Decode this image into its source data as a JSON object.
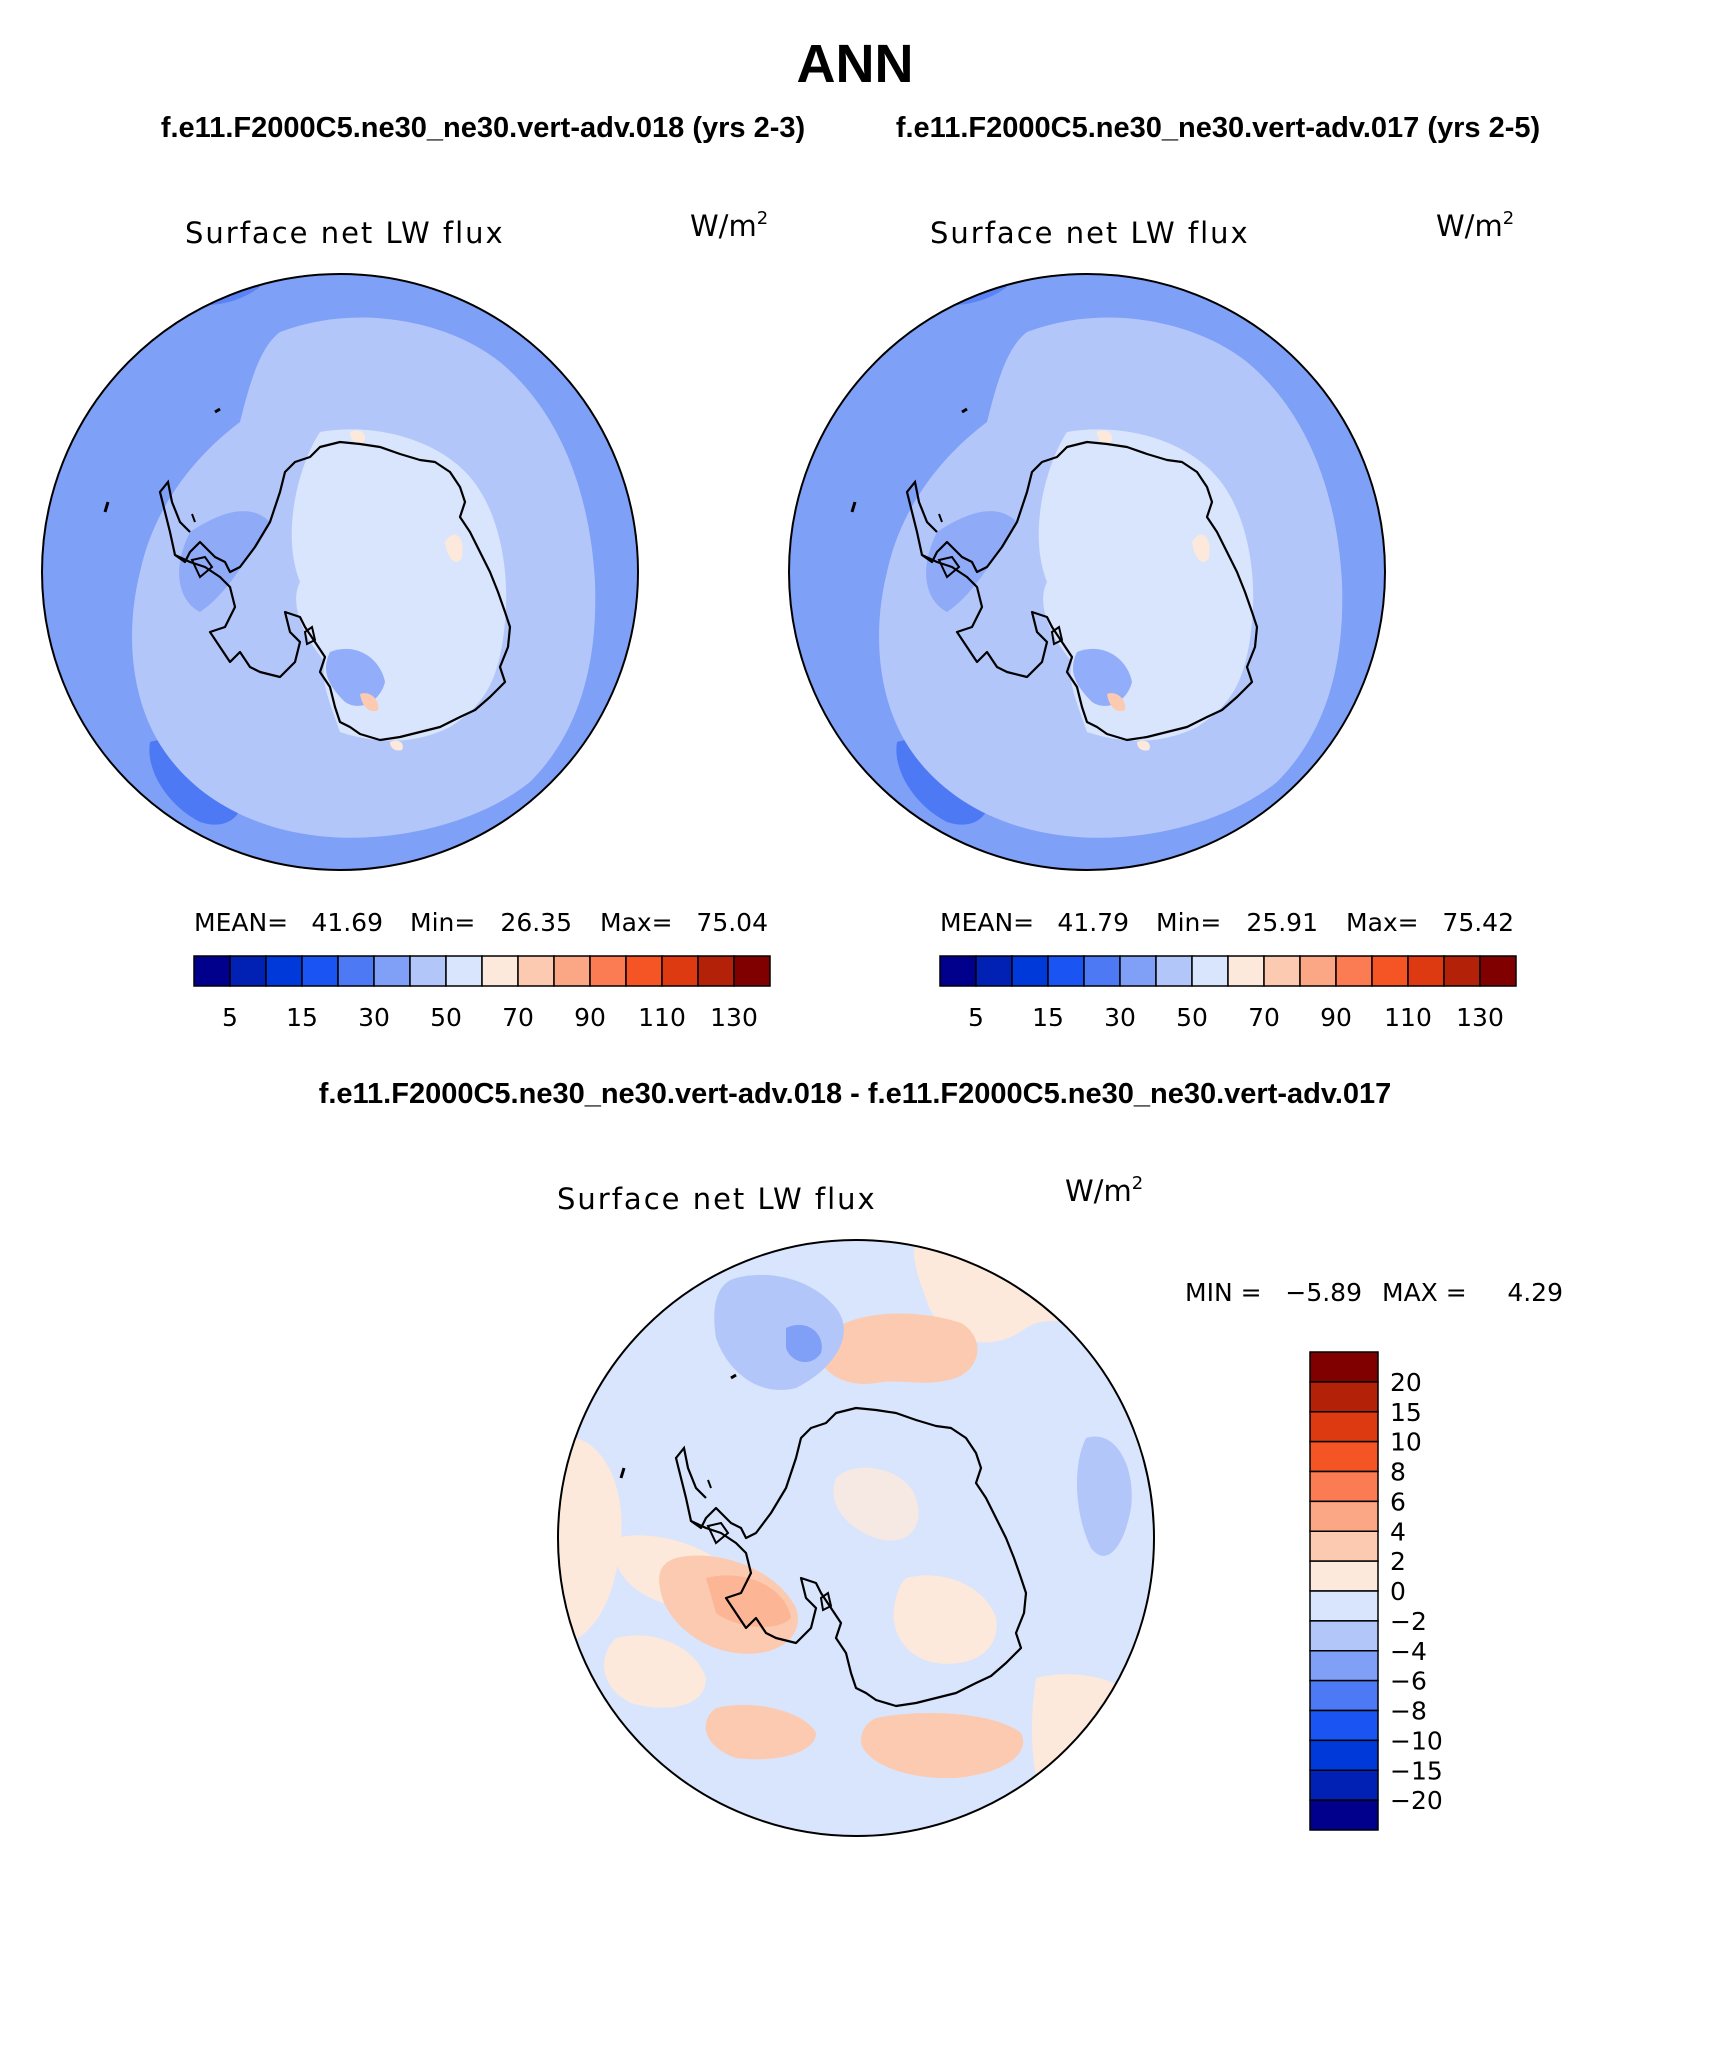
{
  "page": {
    "title": "ANN",
    "subtitle_left": "f.e11.F2000C5.ne30_ne30.vert-adv.018 (yrs 2-3)",
    "subtitle_right": "f.e11.F2000C5.ne30_ne30.vert-adv.017 (yrs 2-5)",
    "diff_title": "f.e11.F2000C5.ne30_ne30.vert-adv.018 - f.e11.F2000C5.ne30_ne30.vert-adv.017"
  },
  "units": {
    "base": "W/m",
    "exp": "2"
  },
  "colors": {
    "abs_scale": [
      "#00008c",
      "#0021b3",
      "#0039d9",
      "#1a54f2",
      "#4d79f5",
      "#809ff7",
      "#b3c6fa",
      "#d9e5fc",
      "#fde9dc",
      "#fccab0",
      "#fba684",
      "#fb7b52",
      "#f55525",
      "#de3a12",
      "#b32208",
      "#800000"
    ],
    "diff_scale": [
      "#00008c",
      "#0021b3",
      "#0039d9",
      "#1a54f2",
      "#4d79f5",
      "#809ff7",
      "#b3c6fa",
      "#d9e5fc",
      "#fde9dc",
      "#fccab0",
      "#fba684",
      "#fb7b52",
      "#f55525",
      "#de3a12",
      "#b32208",
      "#800000"
    ],
    "coast": "#000000"
  },
  "panels": [
    {
      "title": "Surface net LW flux",
      "mean_label": "MEAN=",
      "mean": "41.69",
      "min_label": "Min=",
      "min": "26.35",
      "max_label": "Max=",
      "max": "75.04"
    },
    {
      "title": "Surface net LW flux",
      "mean_label": "MEAN=",
      "mean": "41.79",
      "min_label": "Min=",
      "min": "25.91",
      "max_label": "Max=",
      "max": "75.42"
    }
  ],
  "abs_ticks": [
    "5",
    "15",
    "30",
    "50",
    "70",
    "90",
    "110",
    "130"
  ],
  "diff_panel": {
    "title": "Surface net LW flux",
    "min_label": "MIN =",
    "min": "−5.89",
    "max_label": "MAX =",
    "max": "4.29",
    "ticks": [
      "20",
      "15",
      "10",
      "8",
      "6",
      "4",
      "2",
      "0",
      "−2",
      "−4",
      "−6",
      "−8",
      "−10",
      "−15",
      "−20"
    ]
  }
}
